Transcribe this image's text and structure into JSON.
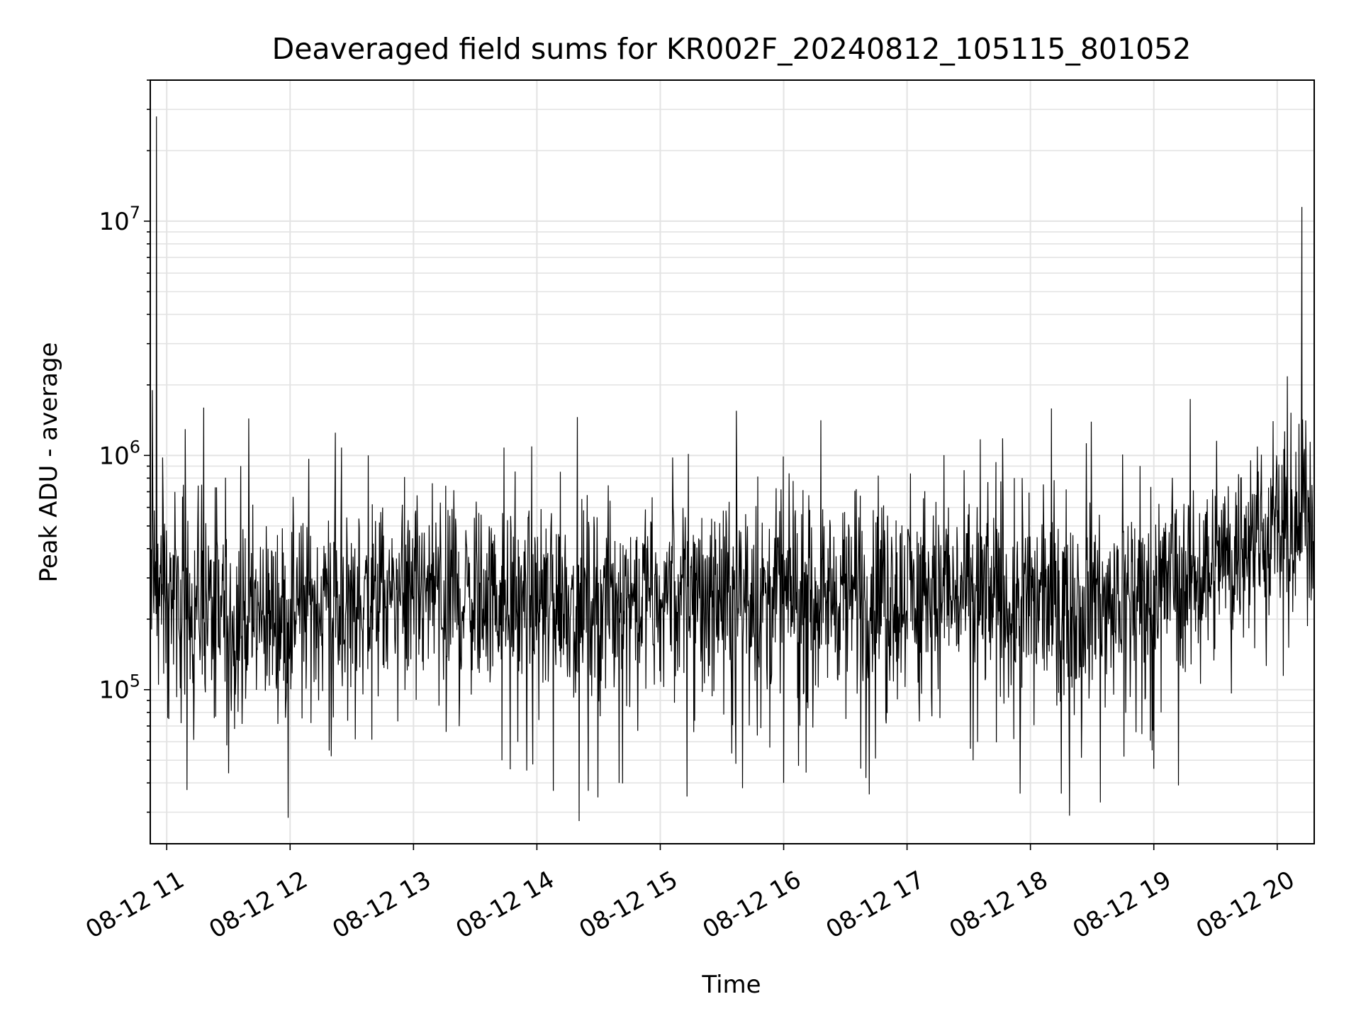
{
  "chart_data": {
    "type": "line",
    "title": "Deaveraged field sums for KR002F_20240812_105115_801052",
    "xlabel": "Time",
    "ylabel": "Peak ADU - average",
    "x_axis": {
      "type": "time",
      "start": "2024-08-12 10:52",
      "end": "2024-08-12 20:18"
    },
    "y_axis": {
      "scale": "log",
      "ylim": [
        22000,
        40000000
      ]
    },
    "x_ticks": [
      "08-12 11",
      "08-12 12",
      "08-12 13",
      "08-12 14",
      "08-12 15",
      "08-12 16",
      "08-12 17",
      "08-12 18",
      "08-12 19",
      "08-12 20"
    ],
    "y_ticks": [
      {
        "value": 100000,
        "base": "10",
        "exp": "5"
      },
      {
        "value": 1000000,
        "base": "10",
        "exp": "6"
      },
      {
        "value": 10000000,
        "base": "10",
        "exp": "7"
      }
    ],
    "grid": true,
    "line_color": "#000000",
    "series": [
      {
        "baseline": [
          [
            "2024-08-12 10:52",
            280000
          ],
          [
            "2024-08-12 11:15",
            230000
          ],
          [
            "2024-08-12 11:30",
            210000
          ],
          [
            "2024-08-12 12:00",
            220000
          ],
          [
            "2024-08-12 13:00",
            250000
          ],
          [
            "2024-08-12 14:00",
            240000
          ],
          [
            "2024-08-12 15:00",
            260000
          ],
          [
            "2024-08-12 16:00",
            250000
          ],
          [
            "2024-08-12 17:00",
            260000
          ],
          [
            "2024-08-12 18:00",
            240000
          ],
          [
            "2024-08-12 18:45",
            250000
          ],
          [
            "2024-08-12 19:15",
            300000
          ],
          [
            "2024-08-12 19:45",
            420000
          ],
          [
            "2024-08-12 20:18",
            520000
          ]
        ],
        "spikes": [
          [
            "2024-08-12 10:53",
            1900000
          ],
          [
            "2024-08-12 10:55",
            28000000
          ],
          [
            "2024-08-12 10:58",
            980000
          ],
          [
            "2024-08-12 11:17",
            750000
          ],
          [
            "2024-08-12 11:18",
            1600000
          ],
          [
            "2024-08-12 11:36",
            900000
          ],
          [
            "2024-08-12 12:22",
            1250000
          ],
          [
            "2024-08-12 12:25",
            1080000
          ],
          [
            "2024-08-12 12:38",
            1000000
          ],
          [
            "2024-08-12 13:44",
            1080000
          ],
          [
            "2024-08-12 15:06",
            980000
          ],
          [
            "2024-08-12 15:37",
            1550000
          ],
          [
            "2024-08-12 16:46",
            820000
          ],
          [
            "2024-08-12 17:56",
            800000
          ],
          [
            "2024-08-12 19:58",
            1400000
          ],
          [
            "2024-08-12 20:12",
            11500000
          ],
          [
            "2024-08-12 20:13",
            1000000
          ]
        ],
        "dips": [
          [
            "2024-08-12 10:56",
            105000
          ],
          [
            "2024-08-12 11:01",
            75000
          ],
          [
            "2024-08-12 11:07",
            72000
          ],
          [
            "2024-08-12 11:33",
            68000
          ],
          [
            "2024-08-12 12:19",
            55000
          ],
          [
            "2024-08-12 12:20",
            52000
          ],
          [
            "2024-08-12 13:43",
            50000
          ],
          [
            "2024-08-12 13:58",
            48000
          ],
          [
            "2024-08-12 14:08",
            37000
          ],
          [
            "2024-08-12 14:25",
            37000
          ],
          [
            "2024-08-12 14:40",
            40000
          ],
          [
            "2024-08-12 15:13",
            35000
          ],
          [
            "2024-08-12 15:40",
            38000
          ],
          [
            "2024-08-12 16:00",
            40000
          ],
          [
            "2024-08-12 16:40",
            42000
          ],
          [
            "2024-08-12 17:55",
            36000
          ],
          [
            "2024-08-12 18:15",
            36000
          ],
          [
            "2024-08-12 18:19",
            29000
          ],
          [
            "2024-08-12 18:34",
            33000
          ],
          [
            "2024-08-12 19:00",
            46000
          ],
          [
            "2024-08-12 19:12",
            39000
          ]
        ]
      }
    ]
  }
}
